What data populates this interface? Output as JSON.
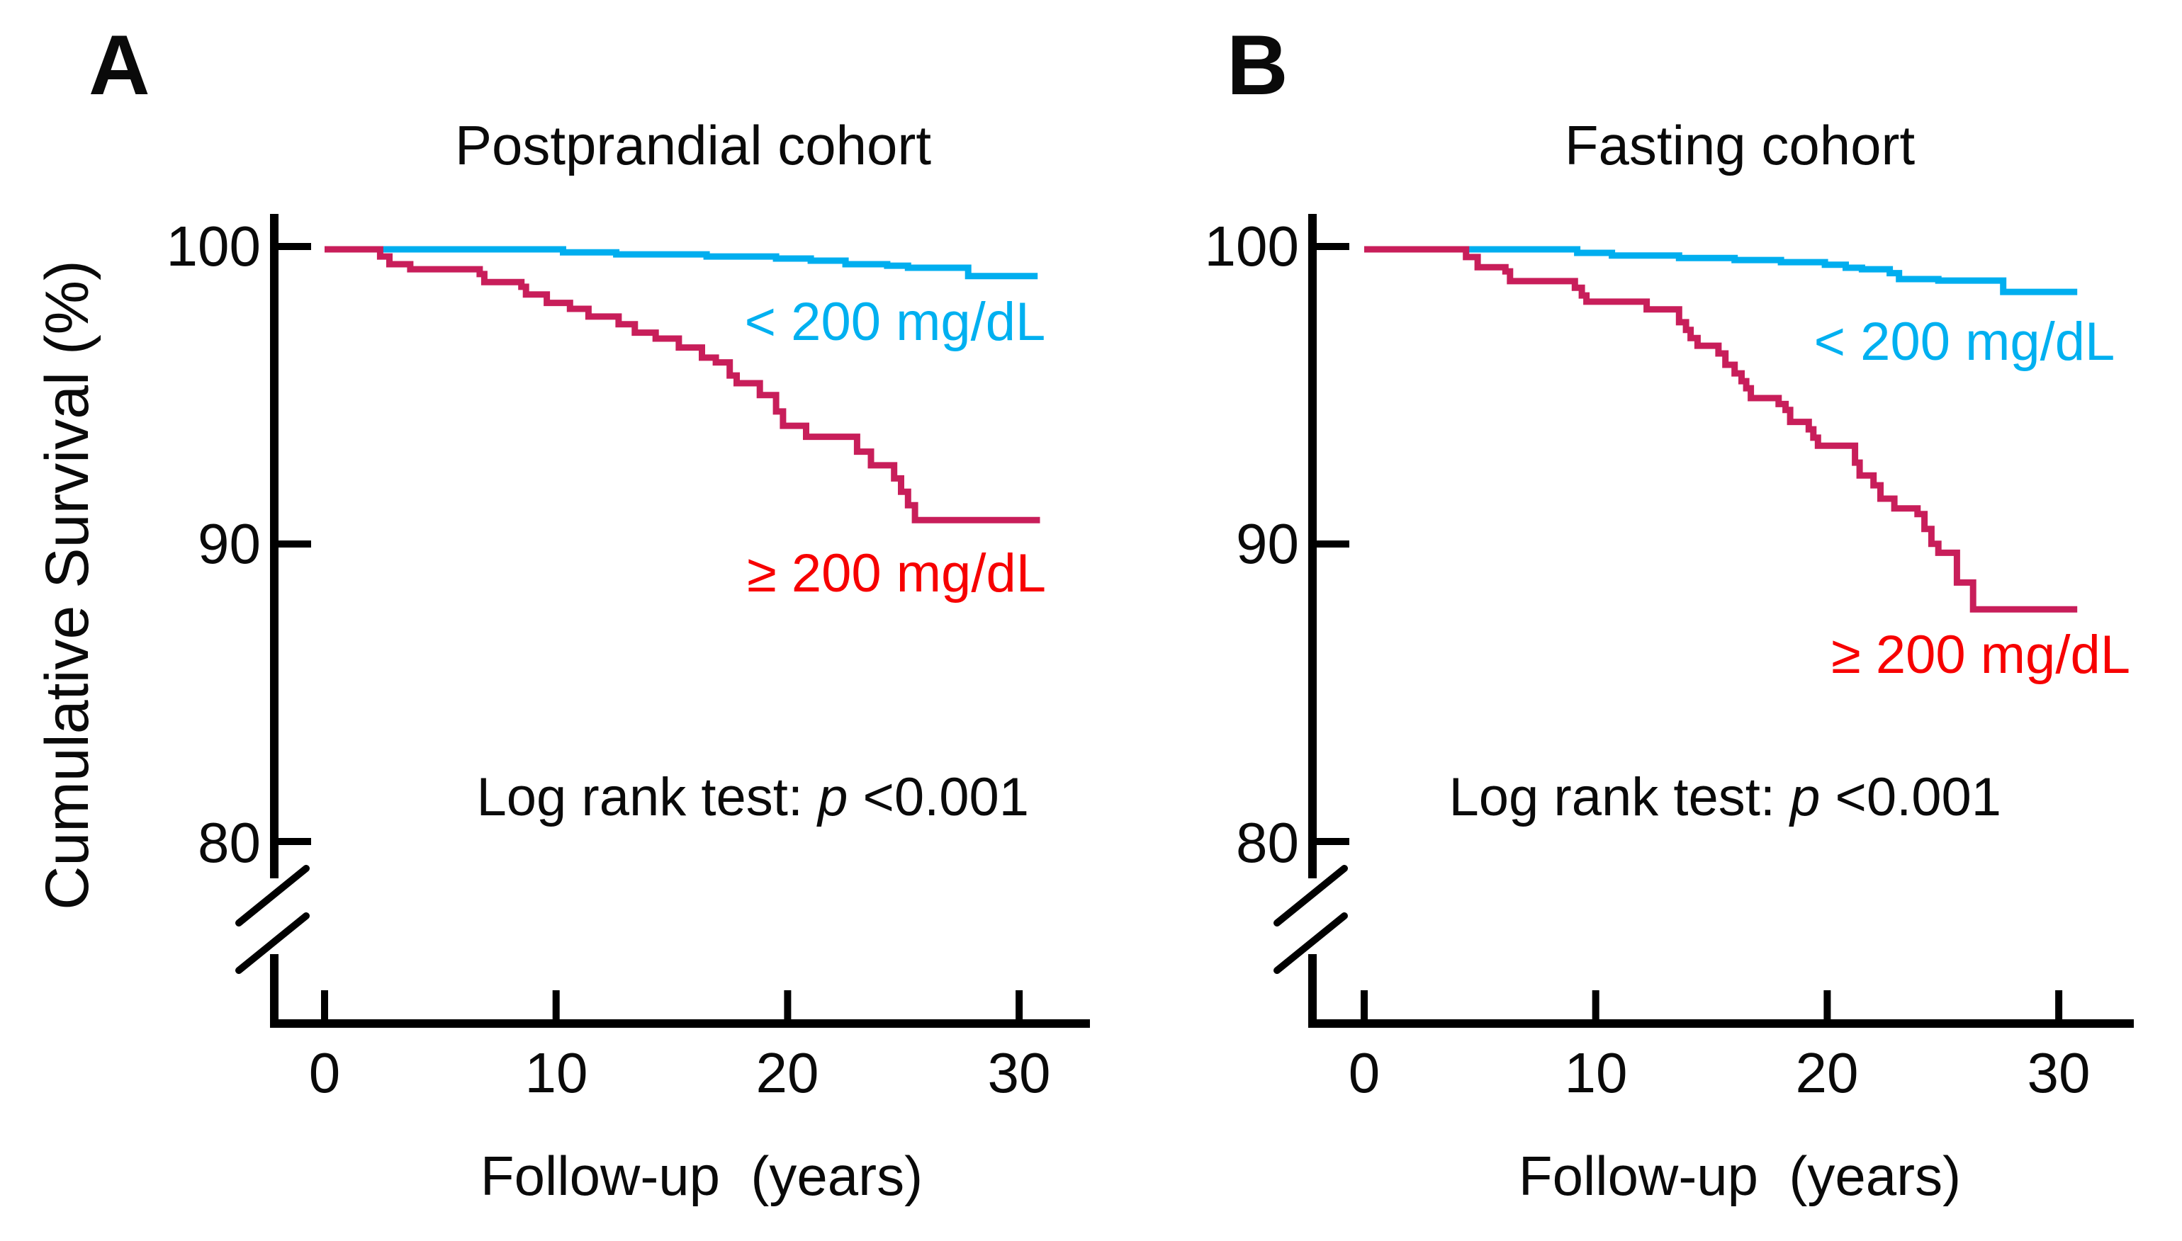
{
  "figure": {
    "y_axis_title": "Cumulative Survival (%)",
    "colors": {
      "below_curve": "#00AEEF",
      "above_curve": "#C81E5A",
      "below_label": "#00B0F0",
      "above_label": "#F70000",
      "axis": "#000000"
    }
  },
  "chart_data": [
    {
      "type": "line",
      "panel": "A",
      "title": "Postprandial cohort",
      "xlabel": "Follow-up  (years)",
      "ylabel": "Cumulative Survival (%)",
      "x_ticks": [
        0,
        10,
        20,
        30
      ],
      "y_ticks": [
        100,
        90,
        80
      ],
      "xlim": [
        0,
        31.5
      ],
      "ylim_visible": [
        80,
        101
      ],
      "axis_break": true,
      "grid": false,
      "annotation": {
        "prefix": "Log rank test: ",
        "italic": "p",
        "suffix": " <0.001"
      },
      "series": [
        {
          "name": "below-200",
          "label": "< 200 mg/dL",
          "color": "#00AEEF",
          "step": true,
          "points": [
            [
              0,
              100
            ],
            [
              10.3,
              99.9
            ],
            [
              12.6,
              99.83
            ],
            [
              16.5,
              99.76
            ],
            [
              19.5,
              99.69
            ],
            [
              21.0,
              99.62
            ],
            [
              22.5,
              99.5
            ],
            [
              24.3,
              99.45
            ],
            [
              25.2,
              99.38
            ],
            [
              27.8,
              99.1
            ],
            [
              30.8,
              99.1
            ]
          ]
        },
        {
          "name": "above-200",
          "label": "≥ 200 mg/dL",
          "color": "#C81E5A",
          "step": true,
          "points": [
            [
              0,
              100
            ],
            [
              2.4,
              99.76
            ],
            [
              2.8,
              99.5
            ],
            [
              3.7,
              99.33
            ],
            [
              6.7,
              99.17
            ],
            [
              6.9,
              98.9
            ],
            [
              8.5,
              98.74
            ],
            [
              8.7,
              98.48
            ],
            [
              9.6,
              98.2
            ],
            [
              10.6,
              98.0
            ],
            [
              11.4,
              97.74
            ],
            [
              12.7,
              97.48
            ],
            [
              13.4,
              97.2
            ],
            [
              14.3,
              97.0
            ],
            [
              15.3,
              96.7
            ],
            [
              16.3,
              96.36
            ],
            [
              16.9,
              96.2
            ],
            [
              17.5,
              95.76
            ],
            [
              17.8,
              95.5
            ],
            [
              18.8,
              95.1
            ],
            [
              19.5,
              94.55
            ],
            [
              19.8,
              94.07
            ],
            [
              20.8,
              93.7
            ],
            [
              23.0,
              93.2
            ],
            [
              23.6,
              92.74
            ],
            [
              24.6,
              92.3
            ],
            [
              24.9,
              91.85
            ],
            [
              25.2,
              91.4
            ],
            [
              25.5,
              90.9
            ],
            [
              30.9,
              90.9
            ]
          ]
        }
      ]
    },
    {
      "type": "line",
      "panel": "B",
      "title": "Fasting cohort",
      "xlabel": "Follow-up  (years)",
      "ylabel": "Cumulative Survival (%)",
      "x_ticks": [
        0,
        10,
        20,
        30
      ],
      "y_ticks": [
        100,
        90,
        80
      ],
      "xlim": [
        0,
        31.5
      ],
      "ylim_visible": [
        80,
        101
      ],
      "axis_break": true,
      "grid": false,
      "annotation": {
        "prefix": "Log rank test: ",
        "italic": "p",
        "suffix": " <0.001"
      },
      "series": [
        {
          "name": "below-200",
          "label": "< 200 mg/dL",
          "color": "#00AEEF",
          "step": true,
          "points": [
            [
              0,
              100
            ],
            [
              9.2,
              99.88
            ],
            [
              10.7,
              99.79
            ],
            [
              13.6,
              99.71
            ],
            [
              16.0,
              99.64
            ],
            [
              18.0,
              99.57
            ],
            [
              19.9,
              99.48
            ],
            [
              20.8,
              99.38
            ],
            [
              21.5,
              99.33
            ],
            [
              22.7,
              99.2
            ],
            [
              23.1,
              99.0
            ],
            [
              24.8,
              98.95
            ],
            [
              27.6,
              98.57
            ],
            [
              30.8,
              98.57
            ]
          ]
        },
        {
          "name": "above-200",
          "label": "≥ 200 mg/dL",
          "color": "#C81E5A",
          "step": true,
          "points": [
            [
              0,
              100
            ],
            [
              4.4,
              99.74
            ],
            [
              4.9,
              99.4
            ],
            [
              6.1,
              99.26
            ],
            [
              6.3,
              98.93
            ],
            [
              9.1,
              98.71
            ],
            [
              9.4,
              98.45
            ],
            [
              9.6,
              98.24
            ],
            [
              12.2,
              97.98
            ],
            [
              13.6,
              97.55
            ],
            [
              13.9,
              97.29
            ],
            [
              14.1,
              97.02
            ],
            [
              14.4,
              96.76
            ],
            [
              15.3,
              96.5
            ],
            [
              15.6,
              96.12
            ],
            [
              16.0,
              95.83
            ],
            [
              16.3,
              95.57
            ],
            [
              16.5,
              95.33
            ],
            [
              16.7,
              95.0
            ],
            [
              17.9,
              94.8
            ],
            [
              18.2,
              94.6
            ],
            [
              18.4,
              94.2
            ],
            [
              19.2,
              93.95
            ],
            [
              19.4,
              93.67
            ],
            [
              19.6,
              93.4
            ],
            [
              21.2,
              92.83
            ],
            [
              21.4,
              92.4
            ],
            [
              22.0,
              92.07
            ],
            [
              22.3,
              91.62
            ],
            [
              22.9,
              91.29
            ],
            [
              23.9,
              91.1
            ],
            [
              24.2,
              90.6
            ],
            [
              24.5,
              90.1
            ],
            [
              24.8,
              89.8
            ],
            [
              25.6,
              88.8
            ],
            [
              26.3,
              87.9
            ],
            [
              30.8,
              87.9
            ]
          ]
        }
      ]
    }
  ]
}
